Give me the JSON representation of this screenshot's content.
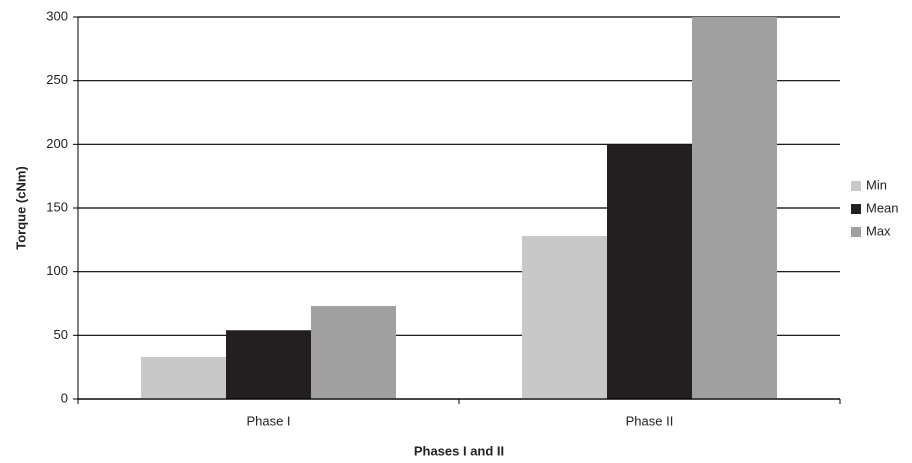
{
  "chart_data": {
    "type": "bar",
    "x_label": "Phases I and II",
    "y_label": "Torque (cNm)",
    "categories": [
      "Phase I",
      "Phase II"
    ],
    "series": [
      {
        "name": "Min",
        "color": "#c8c8c8",
        "values": [
          33,
          128
        ]
      },
      {
        "name": "Mean",
        "color": "#231f20",
        "values": [
          54,
          200
        ]
      },
      {
        "name": "Max",
        "color": "#a0a0a0",
        "values": [
          73,
          300
        ]
      }
    ],
    "ylim": [
      0,
      300
    ],
    "yticks": [
      0,
      50,
      100,
      150,
      200,
      250,
      300
    ],
    "grid": true,
    "legend": "right"
  }
}
